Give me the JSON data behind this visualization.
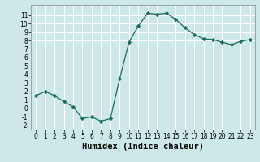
{
  "x": [
    0,
    1,
    2,
    3,
    4,
    5,
    6,
    7,
    8,
    9,
    10,
    11,
    12,
    13,
    14,
    15,
    16,
    17,
    18,
    19,
    20,
    21,
    22,
    23
  ],
  "y": [
    1.5,
    2.0,
    1.5,
    0.8,
    0.2,
    -1.2,
    -1.0,
    -1.5,
    -1.2,
    3.5,
    7.8,
    9.7,
    11.2,
    11.1,
    11.2,
    10.5,
    9.5,
    8.7,
    8.2,
    8.1,
    7.8,
    7.5,
    7.9,
    8.1
  ],
  "xlabel": "Humidex (Indice chaleur)",
  "xlim": [
    -0.5,
    23.5
  ],
  "ylim": [
    -2.5,
    12.2
  ],
  "yticks": [
    -2,
    -1,
    0,
    1,
    2,
    3,
    4,
    5,
    6,
    7,
    8,
    9,
    10,
    11
  ],
  "xticks": [
    0,
    1,
    2,
    3,
    4,
    5,
    6,
    7,
    8,
    9,
    10,
    11,
    12,
    13,
    14,
    15,
    16,
    17,
    18,
    19,
    20,
    21,
    22,
    23
  ],
  "line_color": "#1a6b5a",
  "marker": "D",
  "marker_size": 2.2,
  "bg_color": "#cce8e8",
  "grid_color": "#ffffff",
  "xlabel_fontsize": 7.5,
  "tick_fontsize": 5.5
}
